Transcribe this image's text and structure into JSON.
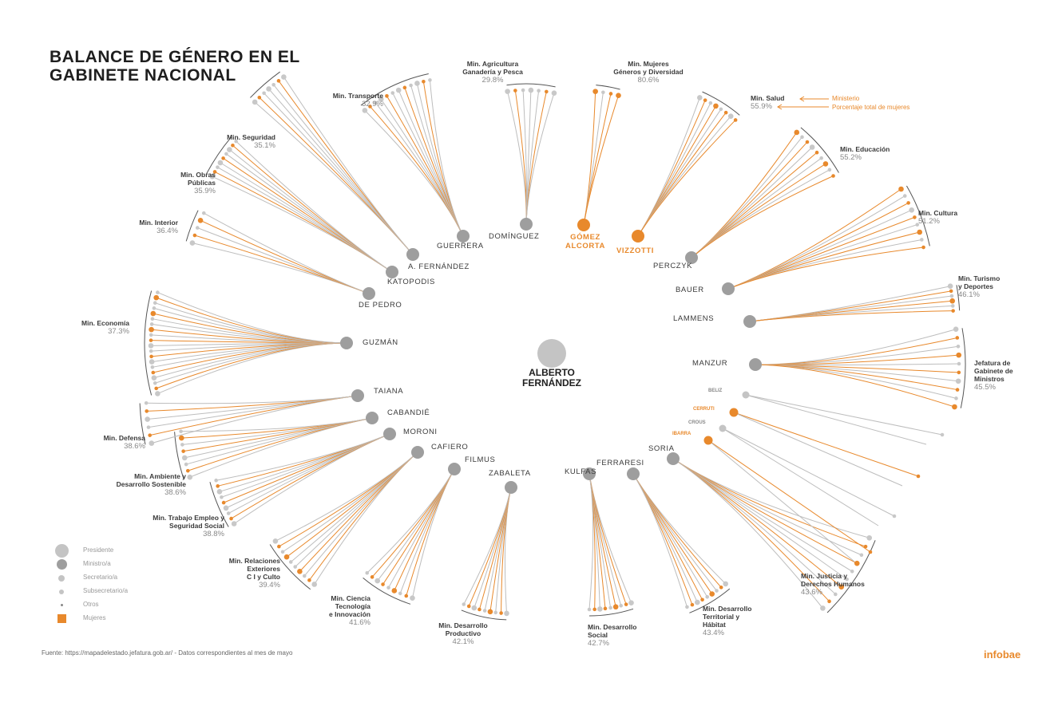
{
  "title": [
    "BALANCE DE GÉNERO EN EL",
    "GABINETE NACIONAL"
  ],
  "center": {
    "name": [
      "ALBERTO",
      "FERNÁNDEZ"
    ]
  },
  "colors": {
    "women": "#e8892c",
    "men": "#bdbdbd",
    "node": "#9e9e9e",
    "text": "#3a3a3a"
  },
  "annotations": {
    "ministry": "Ministerio",
    "percentage": "Porcentaje total de mujeres"
  },
  "legend": [
    {
      "label": "Presidente",
      "icon": "large-circle"
    },
    {
      "label": "Ministro/a",
      "icon": "medium-circle"
    },
    {
      "label": "Secretario/a",
      "icon": "small-circle"
    },
    {
      "label": "Subsecretario/a",
      "icon": "tiny-circle"
    },
    {
      "label": "Otros",
      "icon": "dot"
    },
    {
      "label": "Mujeres",
      "icon": "orange-square"
    }
  ],
  "ministries": [
    {
      "minister": "DOMÍNGUEZ",
      "label": [
        "Min. Agricultura",
        "Ganadería y Pesca"
      ],
      "pct": "29.8%",
      "female_minister": false
    },
    {
      "minister": "GÓMEZ ALCORTA",
      "label": [
        "Min. Mujeres",
        "Géneros y Diversidad"
      ],
      "pct": "80.6%",
      "female_minister": true
    },
    {
      "minister": "VIZZOTTI",
      "label": [
        "Min. Salud"
      ],
      "pct": "55.9%",
      "female_minister": true
    },
    {
      "minister": "PERCZYK",
      "label": [
        "Min. Educación"
      ],
      "pct": "55.2%",
      "female_minister": false
    },
    {
      "minister": "BAUER",
      "label": [
        "Min. Cultura"
      ],
      "pct": "51.2%",
      "female_minister": false
    },
    {
      "minister": "LAMMENS",
      "label": [
        "Min. Turismo",
        "y Deportes"
      ],
      "pct": "46.1%",
      "female_minister": false
    },
    {
      "minister": "MANZUR",
      "label": [
        "Jefatura de",
        "Gabinete de",
        "Ministros"
      ],
      "pct": "45.5%",
      "female_minister": false
    },
    {
      "minister": "SORIA",
      "label": [
        "Min. Justicia y",
        "Derechos Humanos"
      ],
      "pct": "43.6%",
      "female_minister": false
    },
    {
      "minister": "FERRARESI",
      "label": [
        "Min. Desarrollo",
        "Territorial y",
        "Hábitat"
      ],
      "pct": "43.4%",
      "female_minister": false
    },
    {
      "minister": "KULFAS",
      "label": [
        "Min. Desarrollo",
        "Social"
      ],
      "pct": "42.7%",
      "female_minister": false
    },
    {
      "minister": "ZABALETA",
      "label": [
        "Min. Desarrollo",
        "Productivo"
      ],
      "pct": "42.1%",
      "female_minister": false
    },
    {
      "minister": "FILMUS",
      "label": [
        "Min. Ciencia",
        "Tecnología",
        "e Innovación"
      ],
      "pct": "41.6%",
      "female_minister": false
    },
    {
      "minister": "CAFIERO",
      "label": [
        "Min. Relaciones",
        "Exteriores",
        "C I y Culto"
      ],
      "pct": "39.4%",
      "female_minister": false
    },
    {
      "minister": "MORONI",
      "label": [
        "Min. Trabajo Empleo y",
        "Seguridad Social"
      ],
      "pct": "38.8%",
      "female_minister": false
    },
    {
      "minister": "CABANDIÉ",
      "label": [
        "Min. Ambiente y",
        "Desarrollo Sostenible"
      ],
      "pct": "38.6%",
      "female_minister": false
    },
    {
      "minister": "TAIANA",
      "label": [
        "Min. Defensa"
      ],
      "pct": "38.6%",
      "female_minister": false
    },
    {
      "minister": "GUZMÁN",
      "label": [
        "Min. Economía"
      ],
      "pct": "37.3%",
      "female_minister": false
    },
    {
      "minister": "DE PEDRO",
      "label": [
        "Min. Interior"
      ],
      "pct": "36.4%",
      "female_minister": false
    },
    {
      "minister": "KATOPODIS",
      "label": [
        "Min. Obras",
        "Públicas"
      ],
      "pct": "35.9%",
      "female_minister": false
    },
    {
      "minister": "A. FERNÁNDEZ",
      "label": [
        "Min. Seguridad"
      ],
      "pct": "35.1%",
      "female_minister": false
    },
    {
      "minister": "GUERRERA",
      "label": [
        "Min. Transporte"
      ],
      "pct": "32.9%",
      "female_minister": false
    }
  ],
  "secretaries": [
    {
      "name": "BELIZ",
      "female": false
    },
    {
      "name": "CERRUTI",
      "female": true
    },
    {
      "name": "CROUS",
      "female": false
    },
    {
      "name": "IBARRA",
      "female": true
    }
  ],
  "footer": "Fuente: https://mapadelestado.jefatura.gob.ar/ - Datos correspondientes al mes de mayo",
  "brand": "infobae"
}
